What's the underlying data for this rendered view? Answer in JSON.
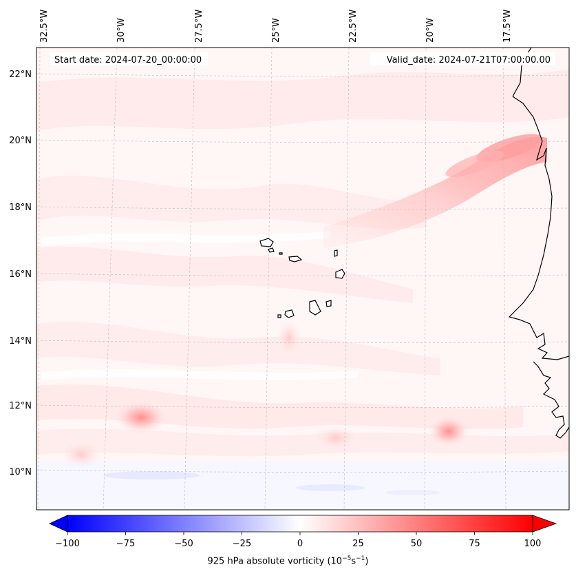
{
  "map": {
    "start_date": "Start date: 2024-07-20_00:00:00",
    "valid_date": "Valid_date: 2024-07-21T07:00:00.00",
    "lon_labels": [
      "32.5°W",
      "30°W",
      "27.5°W",
      "25°W",
      "22.5°W",
      "20°W",
      "17.5°W"
    ],
    "lat_labels": [
      "22°N",
      "20°N",
      "18°N",
      "16°N",
      "14°N",
      "12°N",
      "10°N"
    ]
  },
  "colorbar": {
    "ticks": [
      "−100",
      "−75",
      "−50",
      "−25",
      "0",
      "25",
      "50",
      "75",
      "100"
    ],
    "label_text": "925 hPa absolute vorticity (10",
    "exp1": "−5",
    "mid": "s",
    "exp2": "−1",
    "close": ")",
    "colors": {
      "negative": "#0000ff",
      "zero": "#ffffff",
      "positive": "#ff0000"
    }
  },
  "features": {
    "coastline_color": "#000000",
    "field_base_color": "#fff5f5",
    "highlight_color": "#ff8080"
  }
}
